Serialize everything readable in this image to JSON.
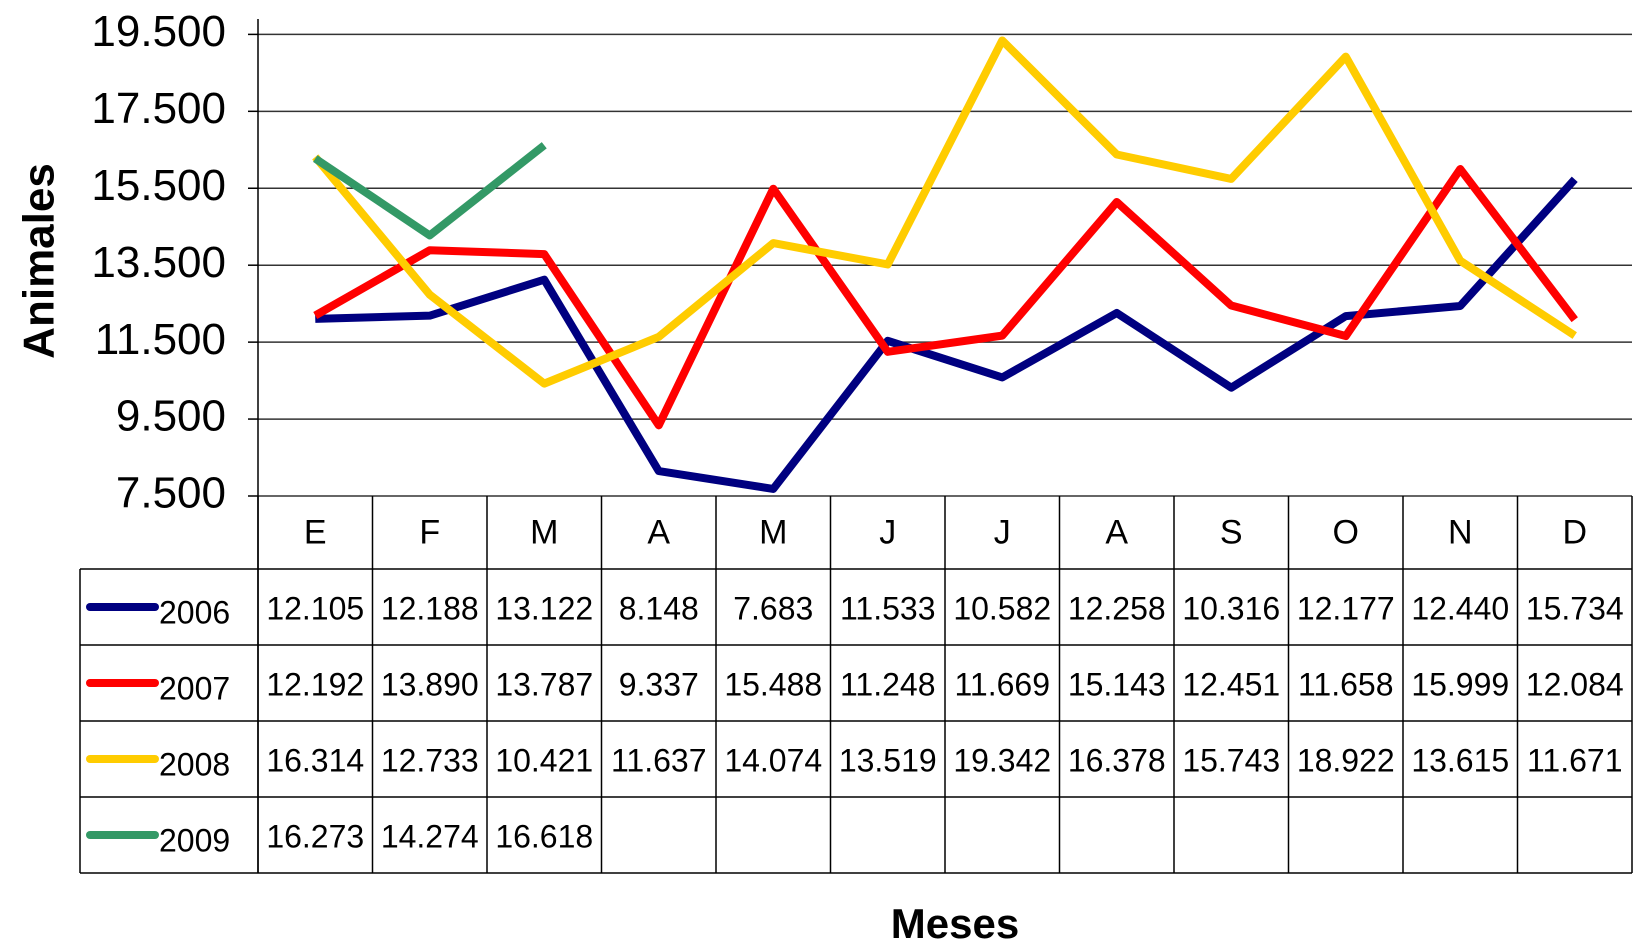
{
  "chart_data": {
    "type": "line",
    "y_label": "Animales",
    "x_label": "Meses",
    "categories": [
      "E",
      "F",
      "M",
      "A",
      "M",
      "J",
      "J",
      "A",
      "S",
      "O",
      "N",
      "D"
    ],
    "series": [
      {
        "name": "2006",
        "color": "#000080",
        "values": [
          12105,
          12188,
          13122,
          8148,
          7683,
          11533,
          10582,
          12258,
          10316,
          12177,
          12440,
          15734
        ],
        "value_labels": [
          "12.105",
          "12.188",
          "13.122",
          "8.148",
          "7.683",
          "11.533",
          "10.582",
          "12.258",
          "10.316",
          "12.177",
          "12.440",
          "15.734"
        ]
      },
      {
        "name": "2007",
        "color": "#ff0000",
        "values": [
          12192,
          13890,
          13787,
          9337,
          15488,
          11248,
          11669,
          15143,
          12451,
          11658,
          15999,
          12084
        ],
        "value_labels": [
          "12.192",
          "13.890",
          "13.787",
          "9.337",
          "15.488",
          "11.248",
          "11.669",
          "15.143",
          "12.451",
          "11.658",
          "15.999",
          "12.084"
        ]
      },
      {
        "name": "2008",
        "color": "#ffcc00",
        "values": [
          16314,
          12733,
          10421,
          11637,
          14074,
          13519,
          19342,
          16378,
          15743,
          18922,
          13615,
          11671
        ],
        "value_labels": [
          "16.314",
          "12.733",
          "10.421",
          "11.637",
          "14.074",
          "13.519",
          "19.342",
          "16.378",
          "15.743",
          "18.922",
          "13.615",
          "11.671"
        ]
      },
      {
        "name": "2009",
        "color": "#339966",
        "values": [
          16273,
          14274,
          16618,
          null,
          null,
          null,
          null,
          null,
          null,
          null,
          null,
          null
        ],
        "value_labels": [
          "16.273",
          "14.274",
          "16.618",
          null,
          null,
          null,
          null,
          null,
          null,
          null,
          null,
          null
        ]
      }
    ],
    "ylim": [
      7500,
      19900
    ],
    "yticks": [
      {
        "value": 7500,
        "label": "7.500"
      },
      {
        "value": 9500,
        "label": "9.500"
      },
      {
        "value": 11500,
        "label": "11.500"
      },
      {
        "value": 13500,
        "label": "13.500"
      },
      {
        "value": 15500,
        "label": "15.500"
      },
      {
        "value": 17500,
        "label": "17.500"
      },
      {
        "value": 19500,
        "label": "19.500"
      }
    ],
    "grid": true
  }
}
